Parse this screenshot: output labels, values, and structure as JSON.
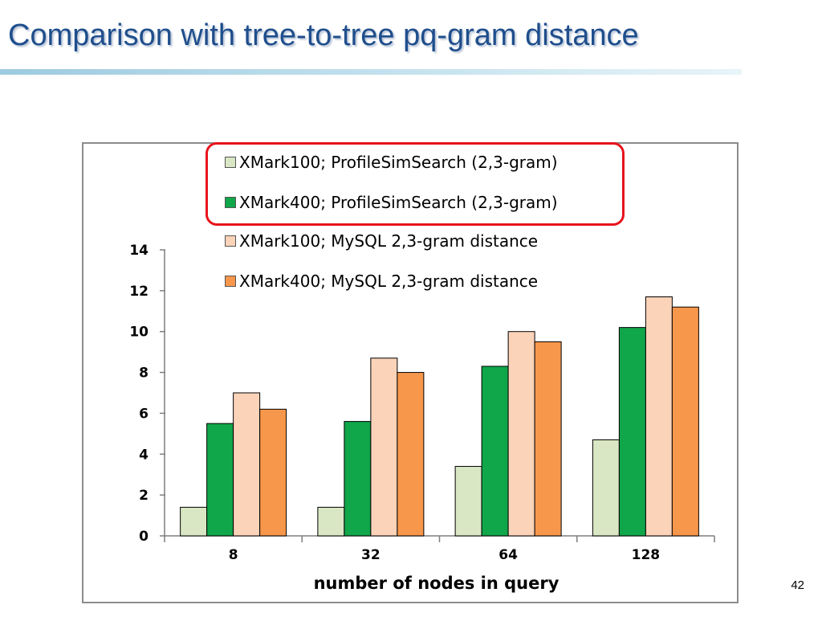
{
  "slide": {
    "title": "Comparison with tree-to-tree pq-gram distance",
    "page_number": "42"
  },
  "chart_data": {
    "type": "bar",
    "title": "",
    "xlabel": "number of nodes in query",
    "ylabel": "",
    "categories": [
      "8",
      "32",
      "64",
      "128"
    ],
    "ylim": [
      0,
      14
    ],
    "yticks": [
      0,
      2,
      4,
      6,
      8,
      10,
      12,
      14
    ],
    "grid": false,
    "legend_position": "top",
    "highlighted_legend_entries": [
      0,
      1
    ],
    "series": [
      {
        "name": "XMark100; ProfileSimSearch (2,3-gram)",
        "color": "#d9e7c4",
        "values": [
          1.4,
          1.4,
          3.4,
          4.7
        ]
      },
      {
        "name": "XMark400; ProfileSimSearch (2,3-gram)",
        "color": "#10a64a",
        "values": [
          5.5,
          5.6,
          8.3,
          10.2
        ]
      },
      {
        "name": "XMark100; MySQL 2,3-gram distance",
        "color": "#fbd3b9",
        "values": [
          7.0,
          8.7,
          10.0,
          11.7
        ]
      },
      {
        "name": "XMark400; MySQL 2,3-gram distance",
        "color": "#f7974b",
        "values": [
          6.2,
          8.0,
          9.5,
          11.2
        ]
      }
    ]
  }
}
